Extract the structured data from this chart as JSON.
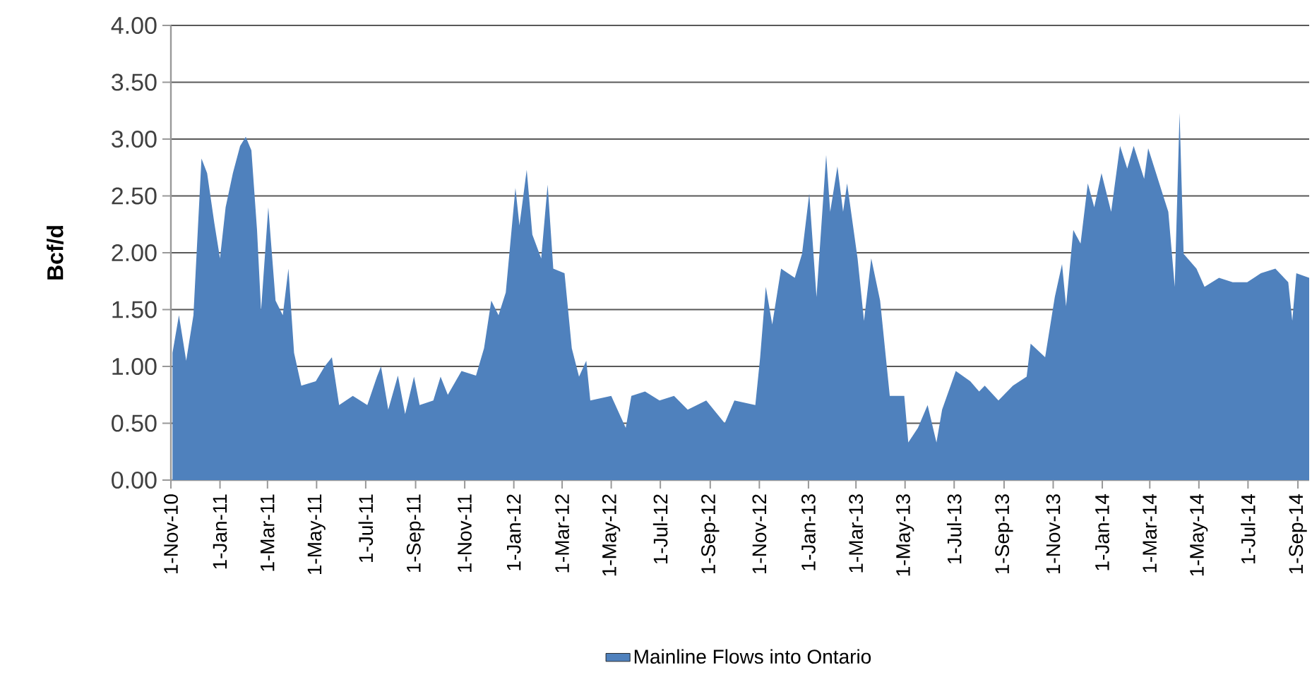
{
  "chart_data": {
    "type": "area",
    "ylabel": "Bcf/d",
    "grid": "y",
    "legend": "bottom",
    "xlim": [
      "2010-11-01",
      "2014-09-15"
    ],
    "xticks": [
      {
        "value": "2010-11-01",
        "label": "1-Nov-10"
      },
      {
        "value": "2011-01-01",
        "label": "1-Jan-11"
      },
      {
        "value": "2011-03-01",
        "label": "1-Mar-11"
      },
      {
        "value": "2011-05-01",
        "label": "1-May-11"
      },
      {
        "value": "2011-07-01",
        "label": "1-Jul-11"
      },
      {
        "value": "2011-09-01",
        "label": "1-Sep-11"
      },
      {
        "value": "2011-11-01",
        "label": "1-Nov-11"
      },
      {
        "value": "2012-01-01",
        "label": "1-Jan-12"
      },
      {
        "value": "2012-03-01",
        "label": "1-Mar-12"
      },
      {
        "value": "2012-05-01",
        "label": "1-May-12"
      },
      {
        "value": "2012-07-01",
        "label": "1-Jul-12"
      },
      {
        "value": "2012-09-01",
        "label": "1-Sep-12"
      },
      {
        "value": "2012-11-01",
        "label": "1-Nov-12"
      },
      {
        "value": "2013-01-01",
        "label": "1-Jan-13"
      },
      {
        "value": "2013-03-01",
        "label": "1-Mar-13"
      },
      {
        "value": "2013-05-01",
        "label": "1-May-13"
      },
      {
        "value": "2013-07-01",
        "label": "1-Jul-13"
      },
      {
        "value": "2013-09-01",
        "label": "1-Sep-13"
      },
      {
        "value": "2013-11-01",
        "label": "1-Nov-13"
      },
      {
        "value": "2014-01-01",
        "label": "1-Jan-14"
      },
      {
        "value": "2014-03-01",
        "label": "1-Mar-14"
      },
      {
        "value": "2014-05-01",
        "label": "1-May-14"
      },
      {
        "value": "2014-07-01",
        "label": "1-Jul-14"
      },
      {
        "value": "2014-09-01",
        "label": "1-Sep-14"
      }
    ],
    "ylim": [
      0,
      4
    ],
    "yticks": [
      {
        "value": 0,
        "label": "0.00"
      },
      {
        "value": 0.5,
        "label": "0.50"
      },
      {
        "value": 1,
        "label": "1.00"
      },
      {
        "value": 1.5,
        "label": "1.50"
      },
      {
        "value": 2,
        "label": "2.00"
      },
      {
        "value": 2.5,
        "label": "2.50"
      },
      {
        "value": 3,
        "label": "3.00"
      },
      {
        "value": 3.5,
        "label": "3.50"
      },
      {
        "value": 4,
        "label": "4.00"
      }
    ],
    "series": [
      {
        "name": "Mainline Flows into Ontario",
        "color": "#4f81bd",
        "x": [
          "2010-11-03",
          "2010-11-11",
          "2010-11-20",
          "2010-11-29",
          "2010-12-09",
          "2010-12-16",
          "2010-12-25",
          "2011-01-01",
          "2011-01-08",
          "2011-01-17",
          "2011-01-26",
          "2011-02-02",
          "2011-02-09",
          "2011-02-16",
          "2011-02-21",
          "2011-03-02",
          "2011-03-11",
          "2011-03-20",
          "2011-03-27",
          "2011-04-03",
          "2011-04-12",
          "2011-04-30",
          "2011-05-11",
          "2011-05-20",
          "2011-05-29",
          "2011-06-15",
          "2011-07-03",
          "2011-07-15",
          "2011-07-20",
          "2011-07-29",
          "2011-08-10",
          "2011-08-19",
          "2011-08-30",
          "2011-09-06",
          "2011-09-23",
          "2011-10-02",
          "2011-10-11",
          "2011-10-28",
          "2011-11-15",
          "2011-11-25",
          "2011-12-04",
          "2011-12-13",
          "2011-12-22",
          "2012-01-03",
          "2012-01-08",
          "2012-01-17",
          "2012-01-24",
          "2012-02-04",
          "2012-02-12",
          "2012-02-19",
          "2012-03-04",
          "2012-03-13",
          "2012-03-22",
          "2012-03-31",
          "2012-04-05",
          "2012-05-01",
          "2012-05-19",
          "2012-05-26",
          "2012-06-12",
          "2012-06-30",
          "2012-07-18",
          "2012-08-04",
          "2012-08-27",
          "2012-09-19",
          "2012-10-01",
          "2012-10-27",
          "2012-11-02",
          "2012-11-09",
          "2012-11-17",
          "2012-11-28",
          "2012-12-15",
          "2012-12-24",
          "2013-01-02",
          "2013-01-11",
          "2013-01-23",
          "2013-01-28",
          "2013-02-06",
          "2013-02-13",
          "2013-02-18",
          "2013-03-03",
          "2013-03-11",
          "2013-03-20",
          "2013-03-31",
          "2013-04-12",
          "2013-04-30",
          "2013-05-05",
          "2013-05-17",
          "2013-05-29",
          "2013-06-09",
          "2013-06-16",
          "2013-07-03",
          "2013-07-21",
          "2013-08-01",
          "2013-08-08",
          "2013-08-25",
          "2013-09-12",
          "2013-09-29",
          "2013-10-04",
          "2013-10-22",
          "2013-11-03",
          "2013-11-12",
          "2013-11-17",
          "2013-11-26",
          "2013-12-05",
          "2013-12-14",
          "2013-12-22",
          "2013-12-31",
          "2014-01-12",
          "2014-01-23",
          "2014-02-01",
          "2014-02-09",
          "2014-02-22",
          "2014-02-27",
          "2014-03-11",
          "2014-03-24",
          "2014-04-01",
          "2014-04-07",
          "2014-04-12",
          "2014-04-28",
          "2014-05-08",
          "2014-05-26",
          "2014-06-12",
          "2014-06-30",
          "2014-07-17",
          "2014-08-04",
          "2014-08-20",
          "2014-08-25",
          "2014-08-30",
          "2014-09-15"
        ],
        "values": [
          1.12,
          1.45,
          1.05,
          1.45,
          2.83,
          2.7,
          2.26,
          1.95,
          2.4,
          2.7,
          2.94,
          3.02,
          2.9,
          2.2,
          1.49,
          2.4,
          1.58,
          1.45,
          1.86,
          1.12,
          0.83,
          0.87,
          1.0,
          1.08,
          0.66,
          0.74,
          0.66,
          0.91,
          1.0,
          0.62,
          0.92,
          0.58,
          0.91,
          0.66,
          0.7,
          0.91,
          0.75,
          0.96,
          0.92,
          1.16,
          1.58,
          1.45,
          1.65,
          2.57,
          2.24,
          2.73,
          2.16,
          1.95,
          2.6,
          1.86,
          1.82,
          1.16,
          0.91,
          1.05,
          0.7,
          0.74,
          0.46,
          0.74,
          0.78,
          0.7,
          0.74,
          0.62,
          0.7,
          0.5,
          0.7,
          0.66,
          1.08,
          1.7,
          1.37,
          1.86,
          1.78,
          1.99,
          2.52,
          1.61,
          2.86,
          2.36,
          2.76,
          2.36,
          2.61,
          1.95,
          1.4,
          1.95,
          1.58,
          0.74,
          0.74,
          0.33,
          0.46,
          0.66,
          0.33,
          0.62,
          0.96,
          0.87,
          0.78,
          0.83,
          0.7,
          0.83,
          0.91,
          1.2,
          1.08,
          1.61,
          1.9,
          1.53,
          2.2,
          2.08,
          2.61,
          2.4,
          2.7,
          2.36,
          2.94,
          2.74,
          2.94,
          2.65,
          2.92,
          2.65,
          2.36,
          1.7,
          3.23,
          1.99,
          1.86,
          1.7,
          1.78,
          1.74,
          1.74,
          1.82,
          1.86,
          1.74,
          1.4,
          1.82,
          1.78
        ]
      }
    ]
  }
}
